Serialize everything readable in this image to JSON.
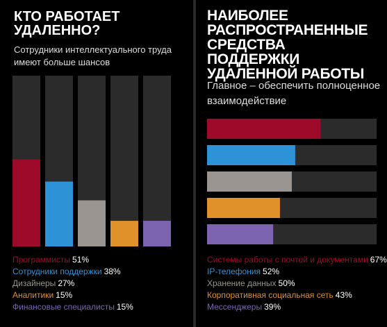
{
  "colors": {
    "background": "#000000",
    "track": "#2b2b2b",
    "crimson": "#9d0a2a",
    "blue": "#2d93d6",
    "gray": "#9a9590",
    "orange": "#e0912a",
    "purple": "#7c64b0"
  },
  "chart_data": [
    {
      "type": "bar",
      "orientation": "vertical",
      "title": "КТО РАБОТАЕТ УДАЛЕННО?",
      "subtitle": "Сотрудники интеллектуального труда имеют больше шансов",
      "ylim": [
        0,
        100
      ],
      "grid": false,
      "legend": "bottom",
      "categories": [
        "Программисты",
        "Сотрудники поддержки",
        "Дизайнеры",
        "Аналитики",
        "Финансовые специалисты"
      ],
      "values": [
        51,
        38,
        27,
        15,
        15
      ],
      "value_labels": [
        "51%",
        "38%",
        "27%",
        "15%",
        "15%"
      ],
      "series_colors": [
        "crimson",
        "blue",
        "gray",
        "orange",
        "purple"
      ]
    },
    {
      "type": "bar",
      "orientation": "horizontal",
      "title": "НАИБОЛЕЕ РАСПРОСТРАНЕННЫЕ СРЕДСТВА ПОДДЕРЖКИ УДАЛЕННОЙ РАБОТЫ",
      "subtitle": "Главное – обеспечить полноценное взаимодействие",
      "xlim": [
        0,
        100
      ],
      "grid": false,
      "legend": "bottom",
      "categories": [
        "Системы работы с почтой и документами",
        "IP-телефония",
        "Хранение данных",
        "Корпоративная социальная сеть",
        "Мессенджеры"
      ],
      "values": [
        67,
        52,
        50,
        43,
        39
      ],
      "value_labels": [
        "67%",
        "52%",
        "50%",
        "43%",
        "39%"
      ],
      "series_colors": [
        "crimson",
        "blue",
        "gray",
        "orange",
        "purple"
      ]
    }
  ]
}
